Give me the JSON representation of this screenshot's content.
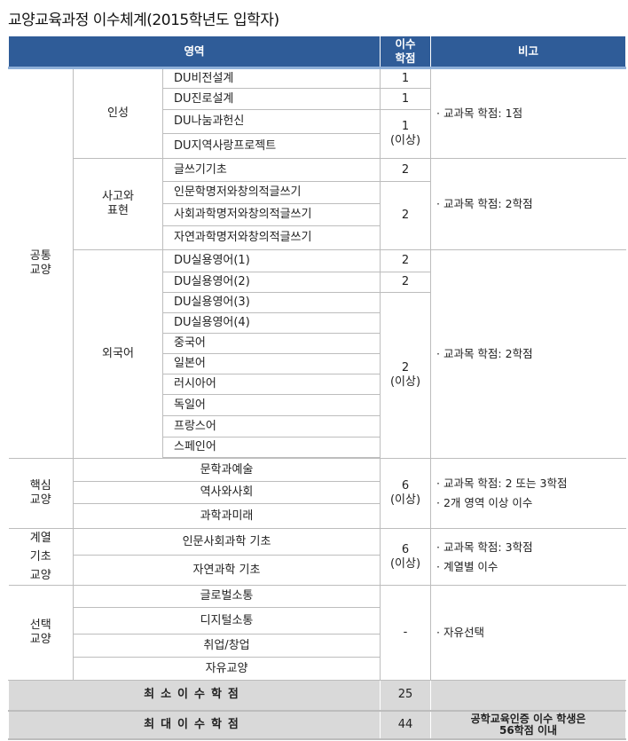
{
  "title": "교양교육과정 이수체계(2015학년도 입학자)",
  "header": {
    "area": "영역",
    "credits": "이수\n학점",
    "credits_l1": "이수",
    "credits_l2": "학점",
    "remarks": "비고"
  },
  "common": {
    "label_l1": "공통",
    "label_l2": "교양",
    "insung": {
      "label": "인성",
      "courses": [
        "DU비전설계",
        "DU진로설계",
        "DU나눔과헌신",
        "DU지역사랑프로젝트"
      ],
      "credits": [
        "1",
        "1",
        "1",
        "(이상)"
      ],
      "remark": "· 교과목 학점: 1점"
    },
    "writing": {
      "label_l1": "사고와",
      "label_l2": "표현",
      "courses": [
        "글쓰기기초",
        "인문학명저와창의적글쓰기",
        "사회과학명저와창의적글쓰기",
        "자연과학명저와창의적글쓰기"
      ],
      "credits": [
        "2",
        "2"
      ],
      "remark": "· 교과목 학점: 2학점"
    },
    "foreign": {
      "label": "외국어",
      "courses": [
        "DU실용영어(1)",
        "DU실용영어(2)",
        "DU실용영어(3)",
        "DU실용영어(4)",
        "중국어",
        "일본어",
        "러시아어",
        "독일어",
        "프랑스어",
        "스페인어"
      ],
      "credits": [
        "2",
        "2",
        "2",
        "(이상)"
      ],
      "remark": "· 교과목 학점: 2학점"
    }
  },
  "core": {
    "label_l1": "핵심",
    "label_l2": "교양",
    "courses": [
      "문학과예술",
      "역사와사회",
      "과학과미래"
    ],
    "credits": [
      "6",
      "(이상)"
    ],
    "remarks": [
      "· 교과목 학점: 2 또는 3학점",
      "· 2개 영역 이상 이수"
    ]
  },
  "basic": {
    "label_l1": "계열",
    "label_l2": "기초",
    "label_l3": "교양",
    "courses": [
      "인문사회과학 기초",
      "자연과학 기초"
    ],
    "credits": [
      "6",
      "(이상)"
    ],
    "remarks": [
      "· 교과목 학점: 3학점",
      "· 계열별 이수"
    ]
  },
  "elective": {
    "label_l1": "선택",
    "label_l2": "교양",
    "courses": [
      "글로벌소통",
      "디지털소통",
      "취업/창업",
      "자유교양"
    ],
    "credits": "-",
    "remark": "· 자유선택"
  },
  "summary": {
    "min_label": "최소이수학점",
    "min_value": "25",
    "max_label": "최대이수학점",
    "max_value": "44",
    "max_note_l1": "공학교육인증 이수 학생은",
    "max_note_l2": "56학점 이내"
  },
  "colors": {
    "header_bg": "#2f5c98",
    "summary_bg": "#d9d9d9"
  }
}
